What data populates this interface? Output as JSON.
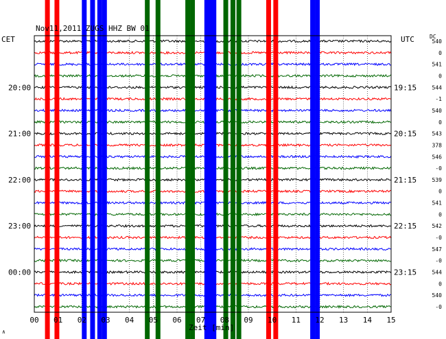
{
  "header": {
    "title": "Nov11,2011 ZUGS HHZ BW 01",
    "left_zone": "CET",
    "right_zone": "UTC",
    "dc_label": "DC",
    "x_axis_label": "Zeit [min]",
    "corner_mark": "∧"
  },
  "chart_data": {
    "type": "line",
    "title": "Nov11,2011 ZUGS HHZ BW 01",
    "xlabel": "Zeit [min]",
    "xlim": [
      0,
      15
    ],
    "x_ticks": [
      "00",
      "01",
      "02",
      "03",
      "04",
      "05",
      "06",
      "07",
      "08",
      "09",
      "10",
      "11",
      "12",
      "13",
      "14",
      "15"
    ],
    "left_time_labels": [
      {
        "label": "20:00",
        "trace": 4
      },
      {
        "label": "21:00",
        "trace": 8
      },
      {
        "label": "22:00",
        "trace": 12
      },
      {
        "label": "23:00",
        "trace": 16
      },
      {
        "label": "00:00",
        "trace": 20
      }
    ],
    "right_time_labels": [
      {
        "label": "19:15",
        "trace": 4
      },
      {
        "label": "20:15",
        "trace": 8
      },
      {
        "label": "21:15",
        "trace": 12
      },
      {
        "label": "22:15",
        "trace": 16
      },
      {
        "label": "23:15",
        "trace": 20
      }
    ],
    "dc_offsets": [
      "540",
      "0",
      "541",
      "0",
      "544",
      "-1",
      "540",
      "0",
      "543",
      "378",
      "546",
      "-0",
      "539",
      "0",
      "541",
      "0",
      "542",
      "-0",
      "547",
      "-0",
      "544",
      "0",
      "540",
      "-0"
    ],
    "trace_colors": [
      "#000000",
      "#ff0000",
      "#0000ff",
      "#006600"
    ],
    "trace_count": 24,
    "events": [
      {
        "x": 0.55,
        "color": "#ff0000"
      },
      {
        "x": 0.95,
        "color": "#ff0000"
      },
      {
        "x": 2.1,
        "color": "#0000ff"
      },
      {
        "x": 2.45,
        "color": "#0000ff"
      },
      {
        "x": 2.75,
        "color": "#0000ff"
      },
      {
        "x": 2.95,
        "color": "#0000ff"
      },
      {
        "x": 4.75,
        "color": "#006600"
      },
      {
        "x": 5.2,
        "color": "#006600"
      },
      {
        "x": 6.45,
        "color": "#006600"
      },
      {
        "x": 6.65,
        "color": "#006600"
      },
      {
        "x": 7.25,
        "color": "#0000ff"
      },
      {
        "x": 7.4,
        "color": "#0000ff"
      },
      {
        "x": 7.55,
        "color": "#0000ff"
      },
      {
        "x": 8.05,
        "color": "#006600"
      },
      {
        "x": 8.35,
        "color": "#006600"
      },
      {
        "x": 8.6,
        "color": "#006600"
      },
      {
        "x": 9.85,
        "color": "#ff0000"
      },
      {
        "x": 10.15,
        "color": "#ff0000"
      },
      {
        "x": 11.7,
        "color": "#0000ff"
      },
      {
        "x": 11.9,
        "color": "#0000ff"
      }
    ]
  }
}
